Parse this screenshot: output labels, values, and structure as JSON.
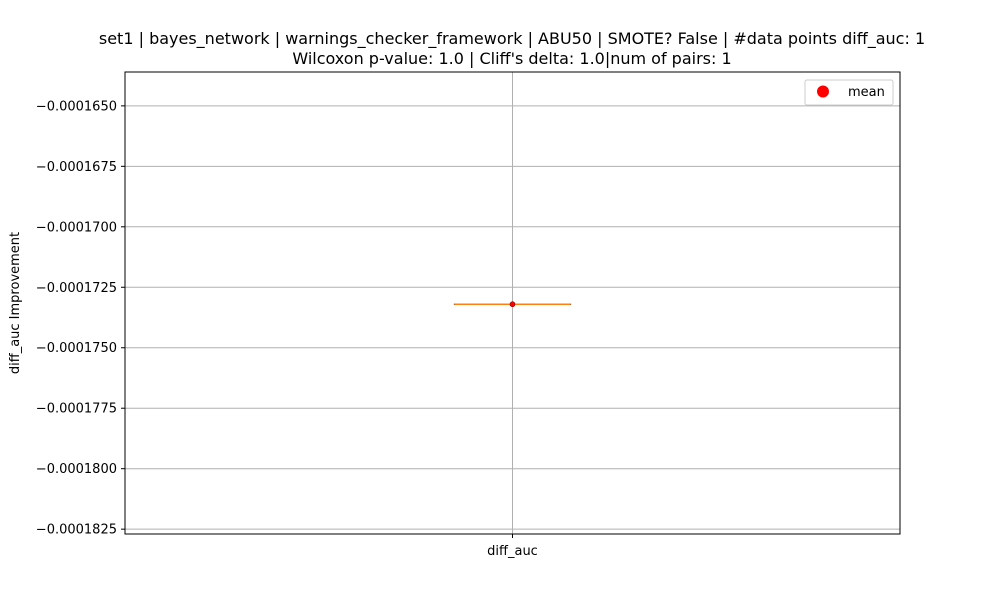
{
  "chart_data": {
    "type": "box",
    "title": "set1 | bayes_network | warnings_checker_framework | ABU50 | SMOTE? False | #data points diff_auc: 1",
    "subtitle": "Wilcoxon p-value: 1.0 | Cliff's delta: 1.0|num of pairs: 1",
    "xlabel": "",
    "ylabel": "diff_auc Improvement",
    "categories": [
      "diff_auc"
    ],
    "ylim": [
      -0.0001827,
      -0.0001636
    ],
    "yticks": [
      -0.000165,
      -0.0001675,
      -0.00017,
      -0.0001725,
      -0.000175,
      -0.0001775,
      -0.00018,
      -0.0001825
    ],
    "ytick_labels": [
      "−0.0001650",
      "−0.0001675",
      "−0.0001700",
      "−0.0001725",
      "−0.0001750",
      "−0.0001775",
      "−0.0001800",
      "−0.0001825"
    ],
    "box": {
      "category": "diff_auc",
      "min": -0.0001732,
      "q1": -0.0001732,
      "median": -0.0001732,
      "q3": -0.0001732,
      "max": -0.0001732,
      "mean": -0.0001732
    },
    "grid": true,
    "legend": {
      "placement": "top-right",
      "entries": [
        {
          "label": "mean",
          "color": "#ff0000",
          "marker": "circle"
        }
      ]
    },
    "colors": {
      "box": "#000000",
      "median": "#ff7f0e",
      "mean": "#ff0000",
      "grid": "#b0b0b0"
    }
  }
}
